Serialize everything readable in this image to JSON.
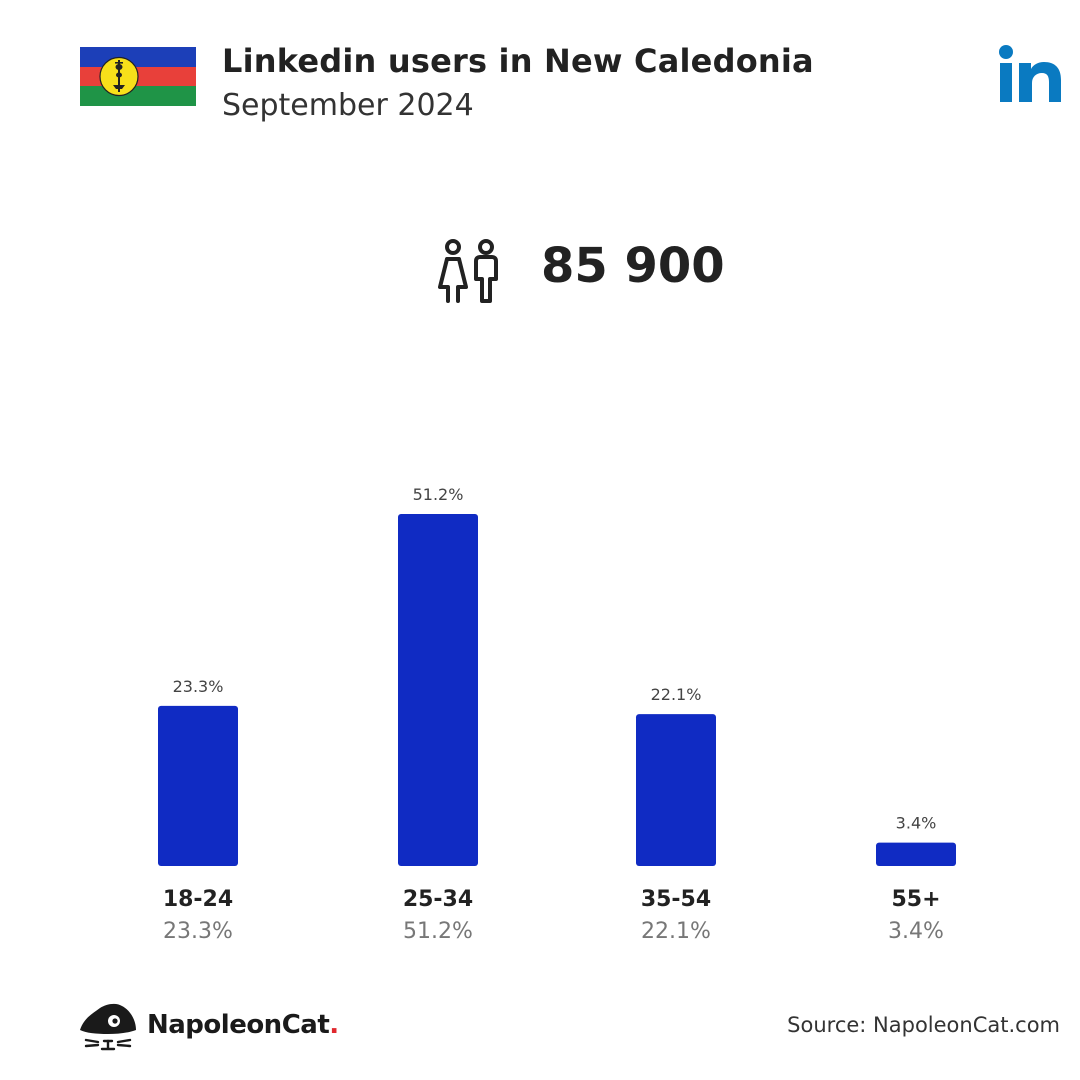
{
  "header": {
    "title": "Linkedin users in New Caledonia",
    "subtitle": "September 2024"
  },
  "icons": {
    "flag": "new-caledonia-flag",
    "platform": "linkedin-logo",
    "people": "people-icon",
    "brand": "napoleoncat-logo"
  },
  "total_users": "85 900",
  "colors": {
    "bar": "#102bc3",
    "linkedin": "#0a7ac1",
    "flag_blue": "#1c3fb8",
    "flag_red": "#e8403a",
    "flag_green": "#1f9447",
    "flag_yellow": "#f7e01a",
    "brand_dot": "#e0282e"
  },
  "chart_data": {
    "type": "bar",
    "categories": [
      "18-24",
      "25-34",
      "35-54",
      "55+"
    ],
    "values": [
      23.3,
      51.2,
      22.1,
      3.4
    ],
    "value_labels": [
      "23.3%",
      "51.2%",
      "22.1%",
      "3.4%"
    ],
    "title": "",
    "xlabel": "",
    "ylabel": "",
    "ylim": [
      0,
      51.2
    ],
    "grid": false
  },
  "footer": {
    "brand_name": "NapoleonCat",
    "brand_dot": ".",
    "source": "Source: NapoleonCat.com"
  }
}
